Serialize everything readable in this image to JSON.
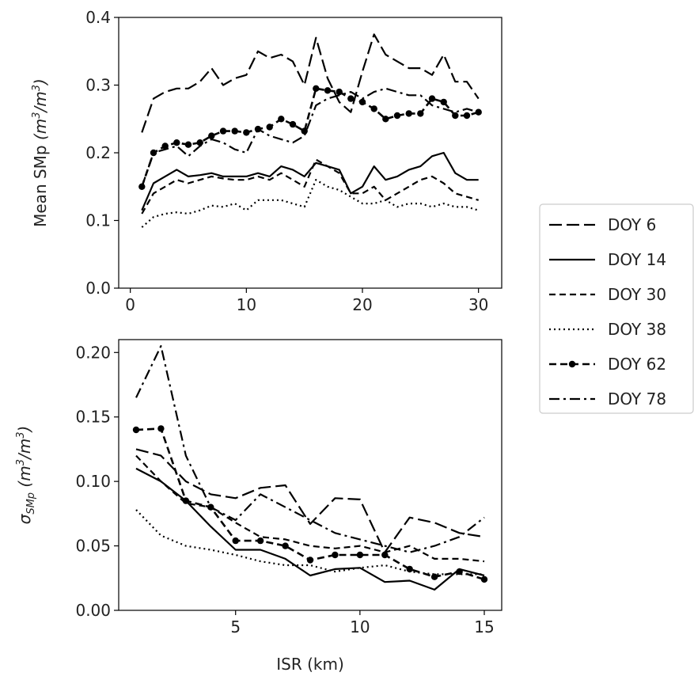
{
  "chart_data": [
    {
      "type": "line",
      "title": "",
      "xlabel": "",
      "ylabel": "Mean SMp (m³/m³)",
      "ylabel_main": "Mean SMp ",
      "ylabel_unit_a": "(m",
      "ylabel_unit_sup1": "3",
      "ylabel_unit_b": "/m",
      "ylabel_unit_sup2": "3",
      "ylabel_unit_c": ")",
      "xlim": [
        -1,
        32
      ],
      "ylim": [
        0.0,
        0.4
      ],
      "xticks": [
        0,
        10,
        20,
        30
      ],
      "yticks": [
        0.0,
        0.1,
        0.2,
        0.3,
        0.4
      ],
      "ytick_labels": [
        "0.0",
        "0.1",
        "0.2",
        "0.3",
        "0.4"
      ],
      "grid": false,
      "legend": false,
      "x": [
        1,
        2,
        3,
        4,
        5,
        6,
        7,
        8,
        9,
        10,
        11,
        12,
        13,
        14,
        15,
        16,
        17,
        18,
        19,
        20,
        21,
        22,
        23,
        24,
        25,
        26,
        27,
        28,
        29,
        30
      ],
      "series": [
        {
          "name": "DOY 6",
          "style": "dashed-long",
          "values": [
            0.23,
            0.28,
            0.29,
            0.295,
            0.295,
            0.305,
            0.325,
            0.3,
            0.31,
            0.315,
            0.35,
            0.34,
            0.345,
            0.335,
            0.3,
            0.37,
            0.31,
            0.275,
            0.26,
            0.32,
            0.375,
            0.345,
            0.335,
            0.325,
            0.325,
            0.315,
            0.345,
            0.305,
            0.305,
            0.28
          ]
        },
        {
          "name": "DOY 14",
          "style": "solid",
          "values": [
            0.115,
            0.155,
            0.165,
            0.175,
            0.165,
            0.167,
            0.17,
            0.165,
            0.165,
            0.165,
            0.17,
            0.165,
            0.18,
            0.175,
            0.165,
            0.185,
            0.18,
            0.175,
            0.14,
            0.15,
            0.18,
            0.16,
            0.165,
            0.175,
            0.18,
            0.195,
            0.2,
            0.17,
            0.16,
            0.16
          ]
        },
        {
          "name": "DOY 30",
          "style": "dashed",
          "values": [
            0.11,
            0.14,
            0.15,
            0.16,
            0.155,
            0.16,
            0.165,
            0.162,
            0.16,
            0.16,
            0.165,
            0.16,
            0.17,
            0.16,
            0.15,
            0.19,
            0.18,
            0.17,
            0.14,
            0.14,
            0.15,
            0.13,
            0.14,
            0.15,
            0.16,
            0.165,
            0.155,
            0.14,
            0.135,
            0.13
          ]
        },
        {
          "name": "DOY 38",
          "style": "dotted",
          "values": [
            0.09,
            0.105,
            0.11,
            0.112,
            0.11,
            0.115,
            0.122,
            0.12,
            0.125,
            0.115,
            0.13,
            0.13,
            0.13,
            0.125,
            0.12,
            0.16,
            0.15,
            0.145,
            0.135,
            0.125,
            0.125,
            0.13,
            0.12,
            0.125,
            0.125,
            0.12,
            0.125,
            0.12,
            0.12,
            0.115
          ]
        },
        {
          "name": "DOY 62",
          "style": "dashed-dot-markers",
          "values": [
            0.15,
            0.2,
            0.21,
            0.215,
            0.212,
            0.215,
            0.225,
            0.232,
            0.232,
            0.23,
            0.235,
            0.238,
            0.25,
            0.242,
            0.232,
            0.295,
            0.292,
            0.29,
            0.28,
            0.275,
            0.265,
            0.25,
            0.255,
            0.258,
            0.258,
            0.28,
            0.275,
            0.255,
            0.255,
            0.26
          ]
        },
        {
          "name": "DOY 78",
          "style": "dashdot",
          "values": [
            0.15,
            0.2,
            0.205,
            0.21,
            0.195,
            0.21,
            0.22,
            0.215,
            0.205,
            0.2,
            0.235,
            0.225,
            0.22,
            0.215,
            0.225,
            0.27,
            0.28,
            0.285,
            0.29,
            0.28,
            0.29,
            0.295,
            0.29,
            0.285,
            0.285,
            0.27,
            0.265,
            0.26,
            0.265,
            0.26
          ]
        }
      ]
    },
    {
      "type": "line",
      "title": "",
      "xlabel": "ISR (km)",
      "ylabel": "σSMp (m³/m³)",
      "ylabel_sigma": "σ",
      "ylabel_sub": "SMp",
      "ylabel_unit_a": " (m",
      "ylabel_unit_sup1": "3",
      "ylabel_unit_b": "/m",
      "ylabel_unit_sup2": "3",
      "ylabel_unit_c": ")",
      "xlim": [
        0.3,
        15.7
      ],
      "ylim": [
        0.0,
        0.21
      ],
      "xticks": [
        5,
        10,
        15
      ],
      "yticks": [
        0.0,
        0.05,
        0.1,
        0.15,
        0.2
      ],
      "ytick_labels": [
        "0.00",
        "0.05",
        "0.10",
        "0.15",
        "0.20"
      ],
      "grid": false,
      "legend": true,
      "legend_position": "right",
      "x": [
        1,
        2,
        3,
        4,
        5,
        6,
        7,
        8,
        9,
        10,
        11,
        12,
        13,
        14,
        15
      ],
      "series": [
        {
          "name": "DOY 6",
          "style": "dashed-long",
          "values": [
            0.125,
            0.12,
            0.1,
            0.09,
            0.087,
            0.095,
            0.097,
            0.067,
            0.087,
            0.086,
            0.045,
            0.072,
            0.068,
            0.06,
            0.057
          ]
        },
        {
          "name": "DOY 14",
          "style": "solid",
          "values": [
            0.11,
            0.1,
            0.085,
            0.065,
            0.047,
            0.047,
            0.04,
            0.027,
            0.032,
            0.033,
            0.022,
            0.023,
            0.016,
            0.032,
            0.027
          ]
        },
        {
          "name": "DOY 30",
          "style": "dashed",
          "values": [
            0.12,
            0.1,
            0.083,
            0.08,
            0.068,
            0.057,
            0.055,
            0.05,
            0.048,
            0.05,
            0.045,
            0.05,
            0.04,
            0.04,
            0.038
          ]
        },
        {
          "name": "DOY 38",
          "style": "dotted",
          "values": [
            0.078,
            0.058,
            0.05,
            0.047,
            0.043,
            0.038,
            0.035,
            0.035,
            0.03,
            0.033,
            0.035,
            0.03,
            0.028,
            0.028,
            0.028
          ]
        },
        {
          "name": "DOY 62",
          "style": "dashed-dot-markers",
          "values": [
            0.14,
            0.141,
            0.085,
            0.08,
            0.054,
            0.054,
            0.05,
            0.039,
            0.043,
            0.043,
            0.043,
            0.032,
            0.026,
            0.03,
            0.024
          ]
        },
        {
          "name": "DOY 78",
          "style": "dashdot",
          "values": [
            0.165,
            0.205,
            0.12,
            0.08,
            0.07,
            0.09,
            0.08,
            0.07,
            0.06,
            0.055,
            0.05,
            0.045,
            0.05,
            0.057,
            0.072
          ]
        }
      ]
    }
  ],
  "legend": {
    "items": [
      "DOY 6",
      "DOY 14",
      "DOY 30",
      "DOY 38",
      "DOY 62",
      "DOY 78"
    ]
  },
  "colors": {
    "line": "#000000",
    "text": "#222222",
    "legend_border": "#cccccc"
  }
}
